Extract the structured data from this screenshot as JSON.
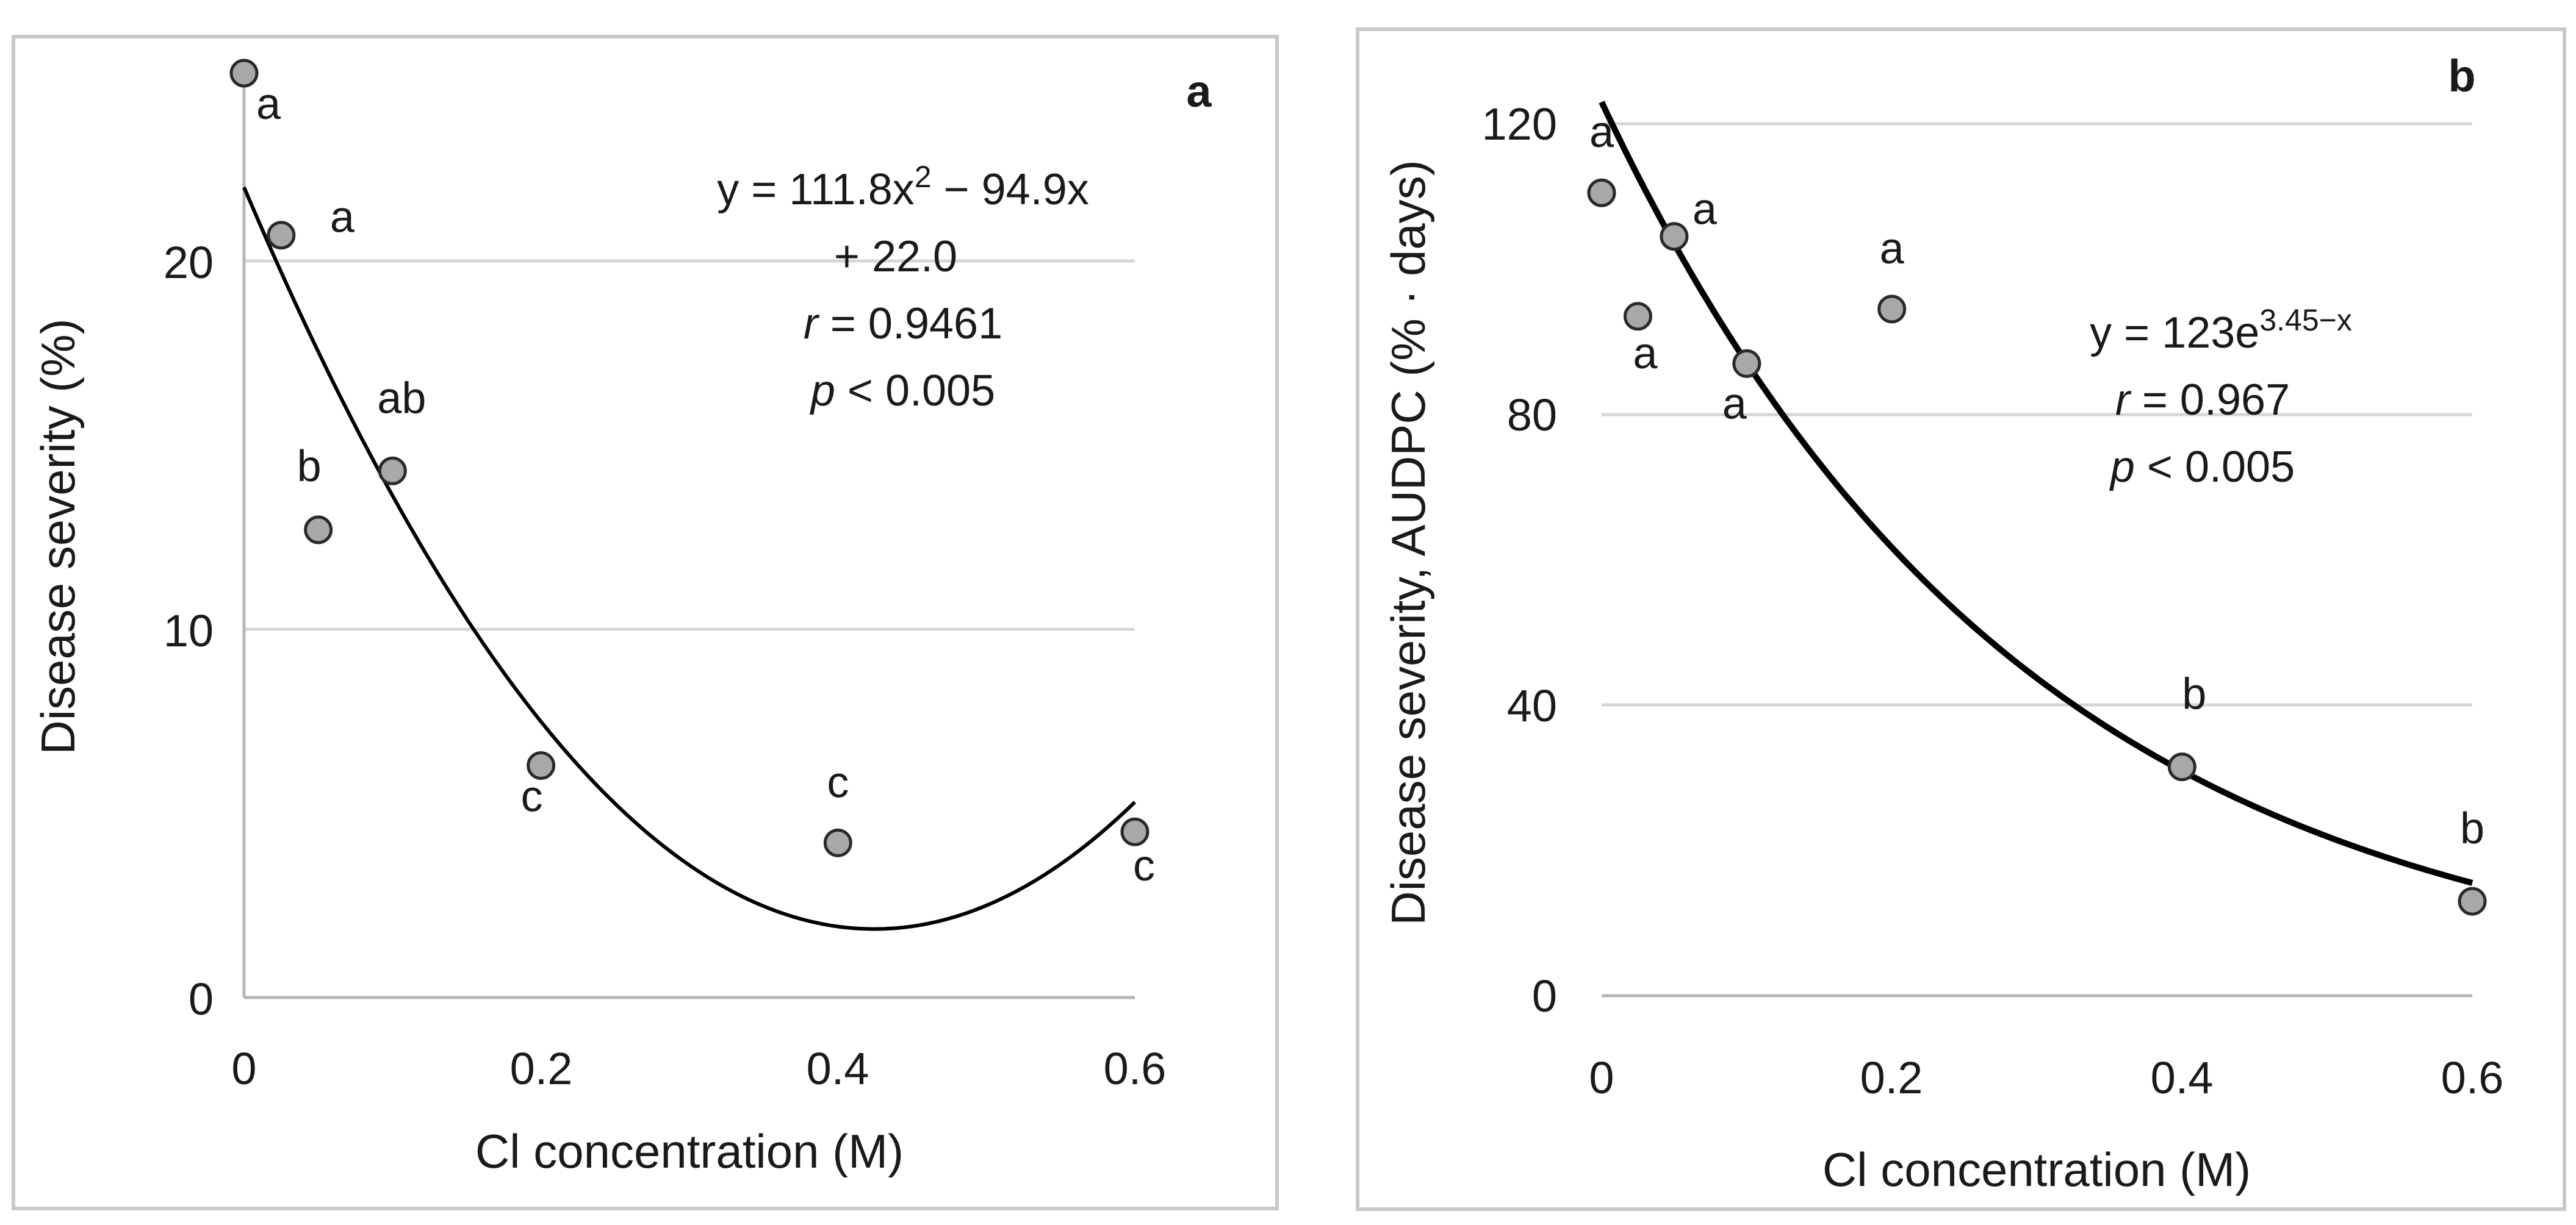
{
  "chart_data": [
    {
      "type": "scatter",
      "panel_label": "a",
      "title": "",
      "xlabel": "Cl concentration (M)",
      "ylabel": "Disease severity (%)",
      "xlim": [
        0,
        0.6
      ],
      "ylim": [
        0,
        25
      ],
      "xticks": [
        "0",
        "0.2",
        "0.4",
        "0.6"
      ],
      "yticks": [
        "0",
        "10",
        "20"
      ],
      "grid": true,
      "points": [
        {
          "x": 0,
          "y": 25.1,
          "label": "a"
        },
        {
          "x": 0.025,
          "y": 20.7,
          "label": "a"
        },
        {
          "x": 0.05,
          "y": 12.7,
          "label": "b"
        },
        {
          "x": 0.1,
          "y": 14.3,
          "label": "ab"
        },
        {
          "x": 0.2,
          "y": 6.3,
          "label": "c"
        },
        {
          "x": 0.4,
          "y": 4.2,
          "label": "c"
        },
        {
          "x": 0.6,
          "y": 4.5,
          "label": "c"
        }
      ],
      "fit": {
        "model": "quadratic",
        "a": 111.8,
        "b": -94.9,
        "c": 22.0
      },
      "equation": {
        "line1_main": "y = 111.8x",
        "line1_sup": "2",
        "line1_end": " − 94.9x",
        "line2": "+ 22.0",
        "r_label": "r",
        "r_value": " = 0.9461",
        "p_label": "p",
        "p_value": " < 0.005"
      }
    },
    {
      "type": "scatter",
      "panel_label": "b",
      "title": "",
      "xlabel": "Cl concentration (M)",
      "ylabel": "Disease severity, AUDPC (% · days)",
      "xlim": [
        0,
        0.6
      ],
      "ylim": [
        0,
        120
      ],
      "xticks": [
        "0",
        "0.2",
        "0.4",
        "0.6"
      ],
      "yticks": [
        "0",
        "40",
        "80",
        "120"
      ],
      "grid": true,
      "points": [
        {
          "x": 0,
          "y": 110.5,
          "label": "a"
        },
        {
          "x": 0.025,
          "y": 93.5,
          "label": "a"
        },
        {
          "x": 0.05,
          "y": 104.5,
          "label": "a"
        },
        {
          "x": 0.1,
          "y": 87.0,
          "label": "a"
        },
        {
          "x": 0.2,
          "y": 94.5,
          "label": "a"
        },
        {
          "x": 0.4,
          "y": 31.5,
          "label": "b"
        },
        {
          "x": 0.6,
          "y": 13.0,
          "label": "b"
        }
      ],
      "fit": {
        "model": "exponential",
        "a": 123,
        "k": 3.45
      },
      "equation": {
        "line1_main": "y = 123e",
        "line1_sup": "3.45−x",
        "r_label": "r",
        "r_value": " = 0.967",
        "p_label": "p",
        "p_value": " < 0.005"
      }
    }
  ]
}
